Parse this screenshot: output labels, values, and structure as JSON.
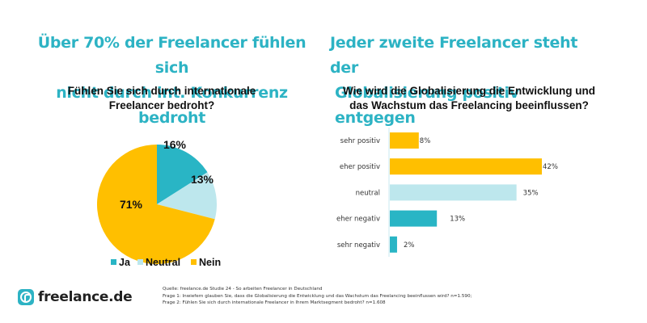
{
  "headlines": {
    "left": [
      "Über 70% der Freelancer fühlen sich",
      "nicht durch int. Konkurrenz bedroht"
    ],
    "right": [
      "Jeder zweite Freelancer steht der",
      "Globalisierung positiv entgegen"
    ]
  },
  "questions": {
    "left": [
      "Fühlen Sie sich durch internationale",
      "Freelancer bedroht?"
    ],
    "right": [
      "Wie wird die Globalisierung die Entwicklung und",
      "das Wachstum das Freelancing beeinflussen?"
    ]
  },
  "colors": {
    "teal": "#29b5c5",
    "light_blue": "#bde7ed",
    "yellow": "#ffbf00",
    "headline": "#2db3c4"
  },
  "chart_data": [
    {
      "type": "pie",
      "title": "Fühlen Sie sich durch internationale Freelancer bedroht?",
      "categories": [
        "Ja",
        "Neutral",
        "Nein"
      ],
      "values": [
        16,
        13,
        71
      ],
      "labels": [
        "16%",
        "13%",
        "71%"
      ],
      "colors": [
        "#29b5c5",
        "#bde7ed",
        "#ffbf00"
      ],
      "legend": "bottom",
      "start": "top",
      "direction": "clockwise"
    },
    {
      "type": "bar",
      "orientation": "horizontal",
      "title": "Wie wird die Globalisierung die Entwicklung und das Wachstum das Freelancing beeinflussen?",
      "categories": [
        "sehr positiv",
        "eher positiv",
        "neutral",
        "eher negativ",
        "sehr negativ"
      ],
      "values": [
        8,
        42,
        35,
        13,
        2
      ],
      "labels": [
        "8%",
        "42%",
        "35%",
        "13%",
        "2%"
      ],
      "colors": [
        "#ffbf00",
        "#ffbf00",
        "#bde7ed",
        "#29b5c5",
        "#29b5c5"
      ],
      "xlim": [
        0,
        42
      ],
      "grid": false
    }
  ],
  "logo": {
    "text": "freelance.de",
    "icon": "freelance-logo-icon"
  },
  "source": [
    "Quelle: freelance.de Studie 24 - So arbeiten Freelancer in Deutschland",
    "Frage 1: Inwiefern glauben Sie, dass die Globalisierung die Entwicklung und das Wachstum das Freelancing beeinflussen wird? n=1.590;",
    "Frage 2: Fühlen Sie sich durch internationale Freelancer in Ihrem Marktsegment bedroht? n=1.608"
  ]
}
